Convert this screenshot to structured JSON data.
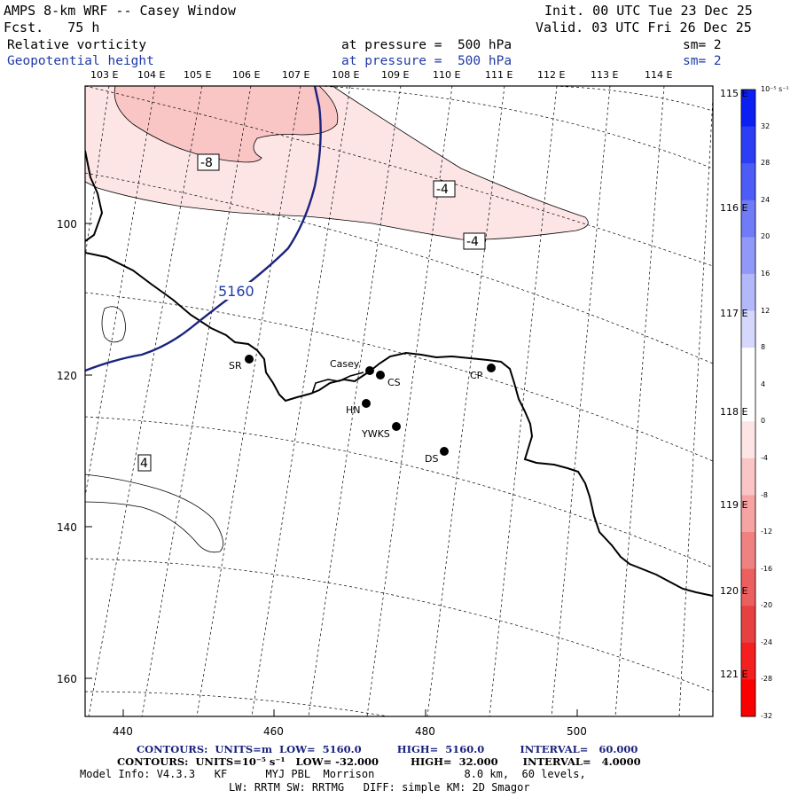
{
  "header": {
    "title": "AMPS 8-km WRF -- Casey Window",
    "forecast": "Fcst.   75 h",
    "init": "Init. 00 UTC Tue 23 Dec 25",
    "valid": "Valid. 03 UTC Fri 26 Dec 25",
    "field1": {
      "name": "Relative vorticity",
      "pressure": "at pressure =  500 hPa",
      "smooth": "sm= 2"
    },
    "field2": {
      "name": "Geopotential height",
      "pressure": "at pressure =  500 hPa",
      "smooth": "sm= 2"
    }
  },
  "longitude_labels_top": [
    "103 E",
    "104 E",
    "105 E",
    "106 E",
    "107 E",
    "108 E",
    "109 E",
    "110 E",
    "111 E",
    "112 E",
    "113 E",
    "114 E"
  ],
  "longitude_labels_right": [
    "115 E",
    "116 E",
    "117 E",
    "118 E",
    "119 E",
    "120 E",
    "121 E"
  ],
  "x_axis": {
    "ticks": [
      "440",
      "460",
      "480",
      "500"
    ]
  },
  "y_axis": {
    "ticks": [
      "100",
      "120",
      "140",
      "160"
    ]
  },
  "contour_labels": {
    "height": "5160",
    "vort_a": "-8",
    "vort_b": "-4",
    "vort_c": "-4",
    "vort_d": "4"
  },
  "stations": [
    {
      "name": "SR"
    },
    {
      "name": "Casey"
    },
    {
      "name": "CS"
    },
    {
      "name": "CP"
    },
    {
      "name": "HN"
    },
    {
      "name": "YWKS"
    },
    {
      "name": "DS"
    }
  ],
  "colorbar": {
    "unit": "10⁻⁵ s⁻¹",
    "labels": [
      "32",
      "28",
      "24",
      "20",
      "16",
      "12",
      "8",
      "4",
      "0",
      "-4",
      "-8",
      "-12",
      "-16",
      "-20",
      "-24",
      "-28",
      "-32"
    ],
    "colors": [
      "#0b1ff5",
      "#2b3ef5",
      "#4d5cf6",
      "#6f7bf7",
      "#9199f8",
      "#b3b8fa",
      "#d5d8fc",
      "#ffffff",
      "#ffffff",
      "#fde5e5",
      "#f9c5c5",
      "#f5a3a3",
      "#f08181",
      "#ec5f5f",
      "#e84040",
      "#f51f1f",
      "#fb0000"
    ]
  },
  "footer": {
    "line1": "CONTOURS:  UNITS=m  LOW=  5160.0          HIGH=  5160.0          INTERVAL=   60.000",
    "line2": "CONTOURS:  UNITS=10⁻⁵ s⁻¹   LOW= -32.000         HIGH=  32.000       INTERVAL=   4.0000",
    "line3": "Model Info: V4.3.3   KF      MYJ PBL  Morrison              8.0 km,  60 levels,",
    "line4": "LW: RRTM SW: RRTMG   DIFF: simple KM: 2D Smagor"
  }
}
